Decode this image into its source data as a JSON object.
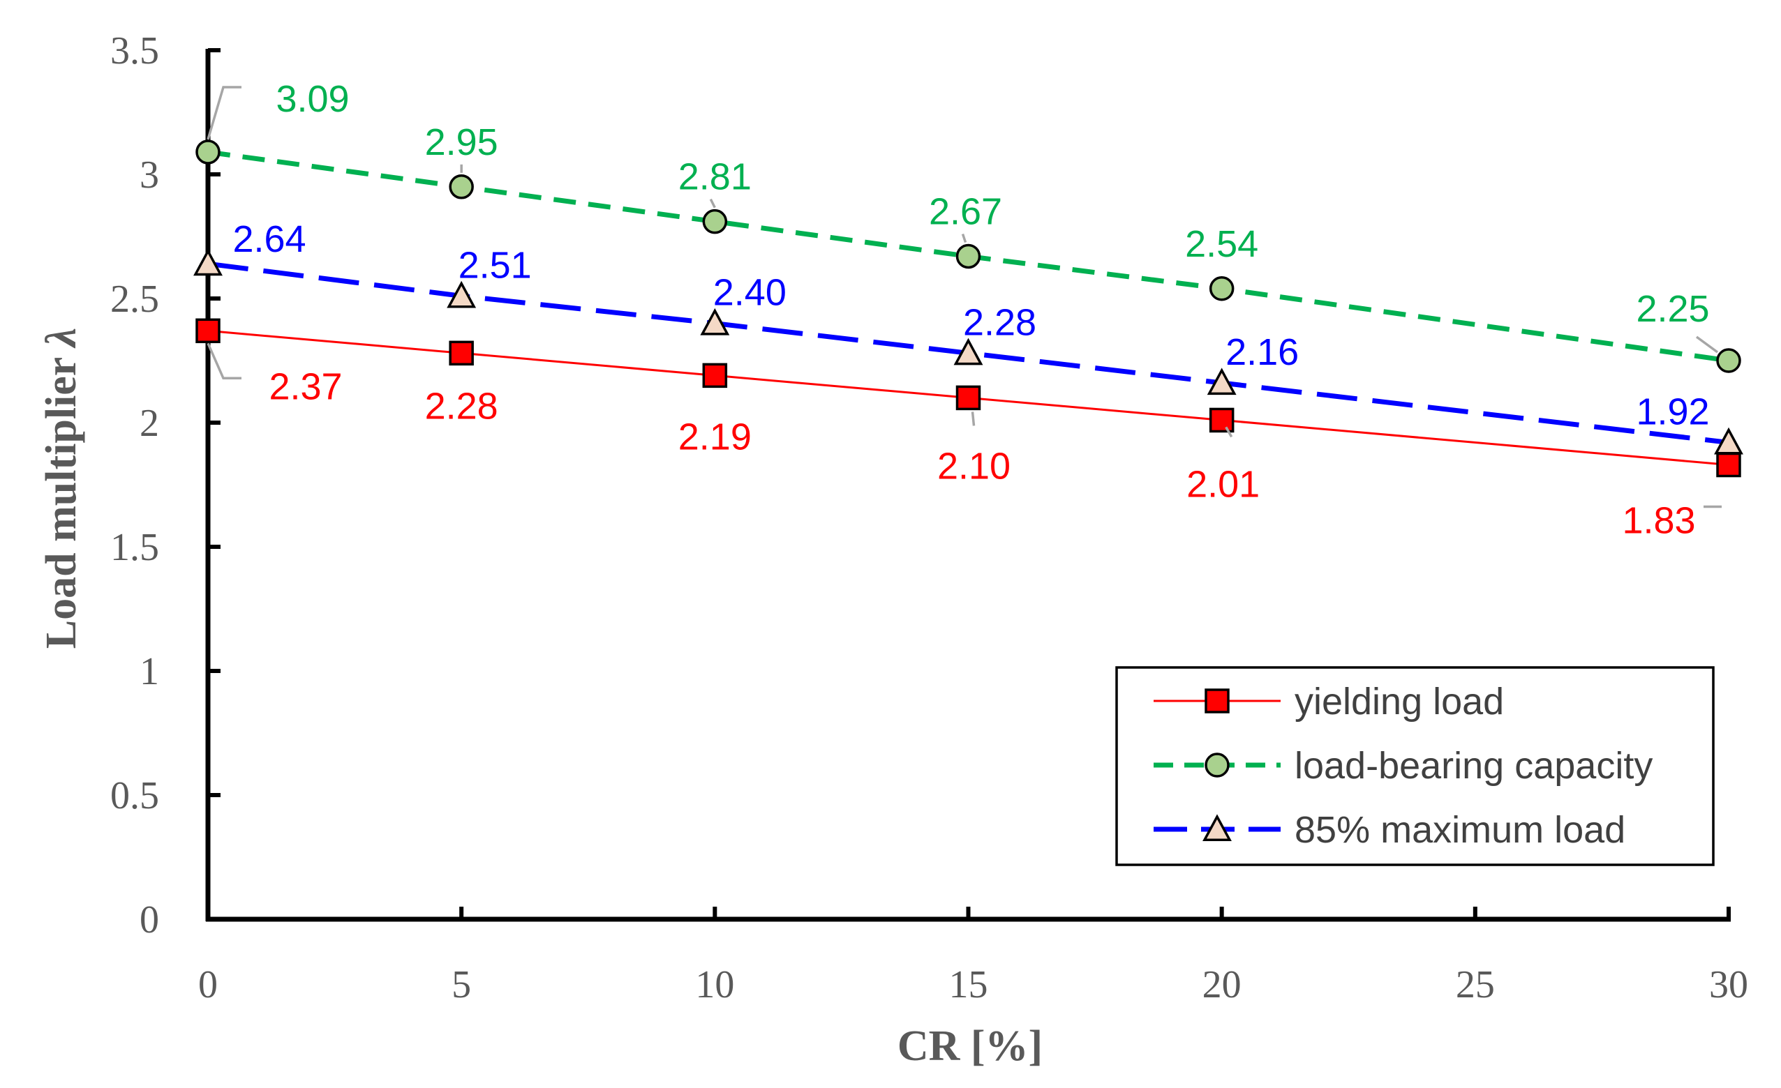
{
  "chart_data": {
    "type": "line",
    "title": "",
    "xlabel": "CR [%]",
    "ylabel_text": "Load multiplier ",
    "ylabel_symbol": "λ",
    "xlim": [
      0,
      30
    ],
    "ylim": [
      0,
      3.5
    ],
    "xticks": [
      0,
      5,
      10,
      15,
      20,
      25,
      30
    ],
    "xtick_labels": [
      "0",
      "5",
      "10",
      "15",
      "20",
      "25",
      "30"
    ],
    "yticks": [
      0,
      0.5,
      1,
      1.5,
      2,
      2.5,
      3,
      3.5
    ],
    "ytick_labels": [
      "0",
      "0.5",
      "1",
      "1.5",
      "2",
      "2.5",
      "3",
      "3.5"
    ],
    "grid": false,
    "legend_position": "bottom-right",
    "x": [
      0,
      5,
      10,
      15,
      20,
      30
    ],
    "series": [
      {
        "name": "yielding load",
        "values": [
          2.37,
          2.28,
          2.19,
          2.1,
          2.01,
          1.83
        ],
        "labels": [
          "2.37",
          "2.28",
          "2.19",
          "2.10",
          "2.01",
          "1.83"
        ],
        "color": "#ff0000",
        "marker_fill": "#ff0000",
        "marker": "square",
        "line_style": "solid"
      },
      {
        "name": "load-bearing capacity",
        "values": [
          3.09,
          2.95,
          2.81,
          2.67,
          2.54,
          2.25
        ],
        "labels": [
          "3.09",
          "2.95",
          "2.81",
          "2.67",
          "2.54",
          "2.25"
        ],
        "color": "#00b050",
        "marker_fill": "#a9d18e",
        "marker": "circle",
        "line_style": "dashed"
      },
      {
        "name": "85% maximum load",
        "values": [
          2.64,
          2.51,
          2.4,
          2.28,
          2.16,
          1.92
        ],
        "labels": [
          "2.64",
          "2.51",
          "2.40",
          "2.28",
          "2.16",
          "1.92"
        ],
        "color": "#0000ff",
        "marker_fill": "#f4d9c6",
        "marker": "triangle",
        "line_style": "long-dashed"
      }
    ]
  }
}
